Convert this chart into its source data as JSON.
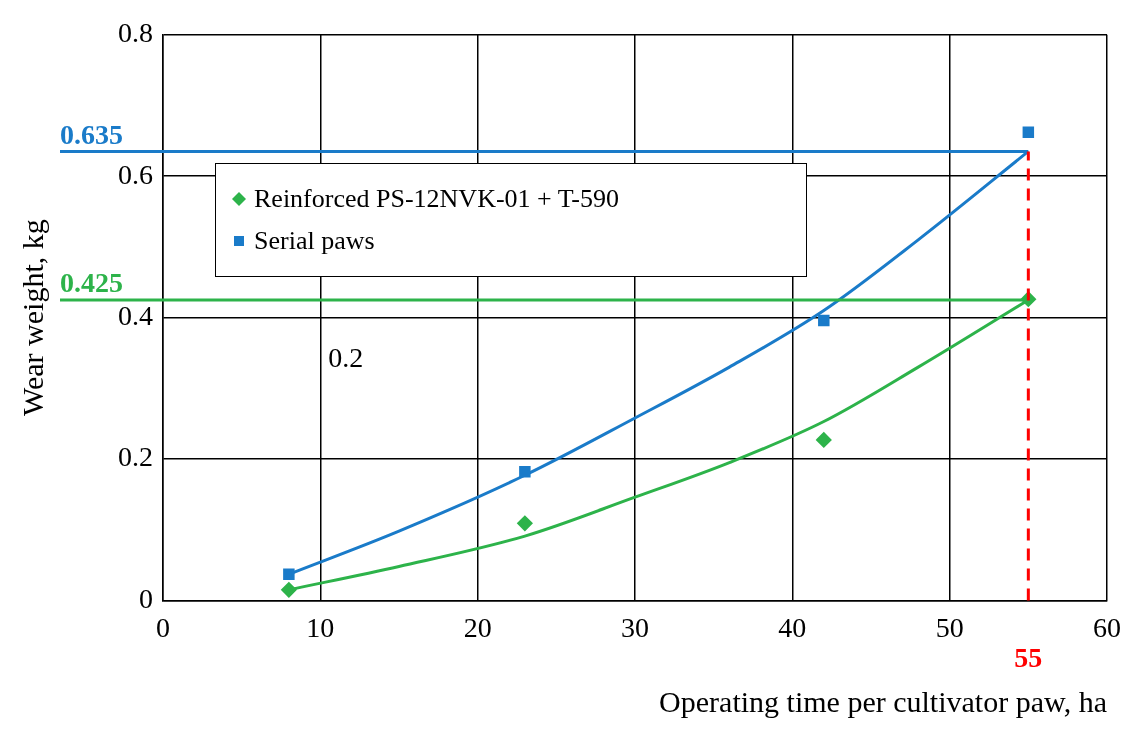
{
  "chart_data": {
    "type": "scatter",
    "xlabel": "Operating time per cultivator paw, ha",
    "ylabel": "Wear weight, kg",
    "xlim": [
      0,
      60
    ],
    "xticks": [
      0,
      10,
      20,
      30,
      40,
      50,
      60
    ],
    "ylim": [
      0,
      0.8
    ],
    "yticks": [
      0,
      0.2,
      0.4,
      0.6,
      0.8
    ],
    "grid": true,
    "legend": "top left",
    "series": [
      {
        "name": "Reinforced PS-12NVK-01 + T-590",
        "type": "scatter",
        "color": "#2db34a",
        "marker": "diamond",
        "x": [
          8,
          23,
          42,
          55
        ],
        "values": [
          0.015,
          0.109,
          0.227,
          0.426
        ]
      },
      {
        "name": "Serial paws",
        "type": "scatter",
        "color": "#1a7bc9",
        "marker": "square",
        "x": [
          8,
          23,
          42,
          55
        ],
        "values": [
          0.037,
          0.182,
          0.396,
          0.662
        ]
      },
      {
        "type": "line",
        "color": "#2db34a",
        "marker": "none",
        "x": [
          8,
          15,
          23,
          30,
          36,
          42,
          48,
          55
        ],
        "values": [
          0.015,
          0.048,
          0.091,
          0.146,
          0.195,
          0.253,
          0.33,
          0.425
        ]
      },
      {
        "type": "line",
        "color": "#1a7bc9",
        "marker": "none",
        "x": [
          8,
          15,
          23,
          30,
          36,
          42,
          48,
          55
        ],
        "values": [
          0.037,
          0.098,
          0.177,
          0.258,
          0.33,
          0.41,
          0.51,
          0.635
        ]
      }
    ],
    "ref_lines": [
      {
        "axis": "y",
        "value": 0.635,
        "label": "0.635",
        "color": "#1a7bc9"
      },
      {
        "axis": "y",
        "value": 0.425,
        "label": "0.425",
        "color": "#2db34a"
      },
      {
        "axis": "x",
        "value": 55,
        "label": "55",
        "color": "#ff0000",
        "line_style": "dashed"
      }
    ],
    "annotations": [
      "0.2"
    ]
  }
}
